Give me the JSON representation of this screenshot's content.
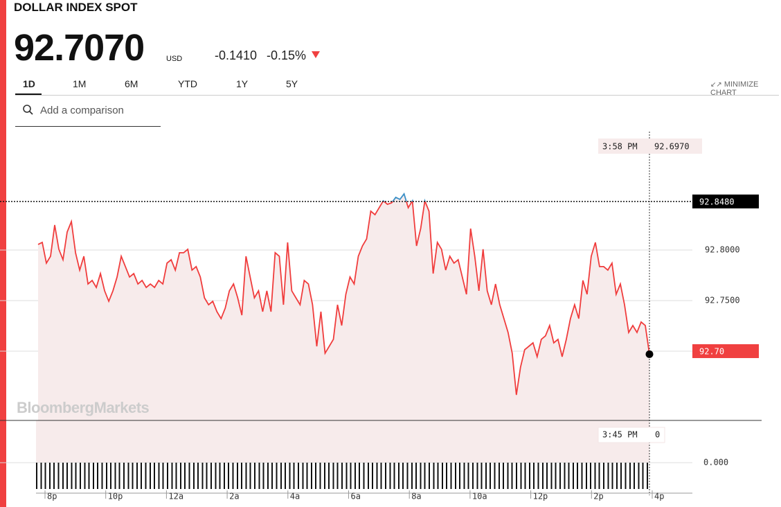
{
  "header": {
    "title": "DOLLAR INDEX SPOT",
    "price": "92.7070",
    "currency": "USD",
    "change": "-0.1410",
    "change_pct": "-0.15%"
  },
  "tabs": [
    "1D",
    "1M",
    "6M",
    "YTD",
    "1Y",
    "5Y"
  ],
  "minimize": "MINIMIZE CHART",
  "search_placeholder": "Add a comparison",
  "watermark": "BloombergMarkets",
  "chart_data": {
    "type": "line",
    "color": "#f03c3c",
    "above_color": "#3a8fc6",
    "x_labels": [
      "8p",
      "10p",
      "12a",
      "2a",
      "4a",
      "6a",
      "8a",
      "10a",
      "12p",
      "2p",
      "4p"
    ],
    "values": [
      92.8055,
      92.8075,
      92.787,
      92.7938,
      92.8247,
      92.8007,
      92.7904,
      92.8178,
      92.8281,
      92.7973,
      92.7801,
      92.7938,
      92.7664,
      92.7699,
      92.763,
      92.7767,
      92.7596,
      92.7493,
      92.7596,
      92.7733,
      92.7938,
      92.7836,
      92.7733,
      92.7767,
      92.7664,
      92.7699,
      92.763,
      92.7664,
      92.763,
      92.7699,
      92.7664,
      92.787,
      92.7904,
      92.7801,
      92.7973,
      92.7973,
      92.8007,
      92.7801,
      92.7836,
      92.7733,
      92.7527,
      92.7459,
      92.7493,
      92.739,
      92.7322,
      92.7425,
      92.7596,
      92.7664,
      92.7527,
      92.7356,
      92.7938,
      92.7733,
      92.7527,
      92.7596,
      92.739,
      92.7596,
      92.739,
      92.7973,
      92.7938,
      92.7459,
      92.8075,
      92.7596,
      92.7527,
      92.7459,
      92.7699,
      92.7664,
      92.7459,
      92.7048,
      92.739,
      92.6979,
      92.7048,
      92.7116,
      92.7459,
      92.7253,
      92.7562,
      92.7733,
      92.7664,
      92.7938,
      92.8041,
      92.811,
      92.8384,
      92.8349,
      92.8418,
      92.8486,
      92.8452,
      92.8466,
      92.8521,
      92.85,
      92.8555,
      92.8418,
      92.8486,
      92.8041,
      92.8212,
      92.8486,
      92.8384,
      92.7767,
      92.8075,
      92.8007,
      92.7801,
      92.7938,
      92.787,
      92.7904,
      92.7733,
      92.7562,
      92.8212,
      92.7938,
      92.7596,
      92.8007,
      92.7596,
      92.7459,
      92.7664,
      92.7459,
      92.7322,
      92.7185,
      92.6979,
      92.6568,
      92.6842,
      92.7014,
      92.7048,
      92.7082,
      92.6945,
      92.7116,
      92.7151,
      92.7253,
      92.7082,
      92.7116,
      92.6945,
      92.7116,
      92.7322,
      92.7459,
      92.7322,
      92.7699,
      92.7562,
      92.7938,
      92.8075,
      92.7836,
      92.7836,
      92.7801,
      92.787,
      92.7562,
      92.7664,
      92.7459,
      92.7185,
      92.7253,
      92.7185,
      92.7288,
      92.7253,
      92.697
    ],
    "ylim": [
      92.6315,
      92.9205
    ],
    "yticks": [
      {
        "value": 92.75,
        "label": "92.7500"
      },
      {
        "value": 92.8,
        "label": "92.8000"
      }
    ],
    "reference": {
      "value": 92.848,
      "label": "92.8480"
    },
    "last": {
      "value": 92.7,
      "label": "92.70"
    },
    "crosshair": {
      "time": "3:58 PM",
      "value": 92.697,
      "label": "92.6970"
    },
    "volume": {
      "yticks": [
        {
          "value": 0,
          "label": "0.000"
        }
      ],
      "crosshair": {
        "time": "3:45 PM",
        "value": 0
      }
    }
  }
}
